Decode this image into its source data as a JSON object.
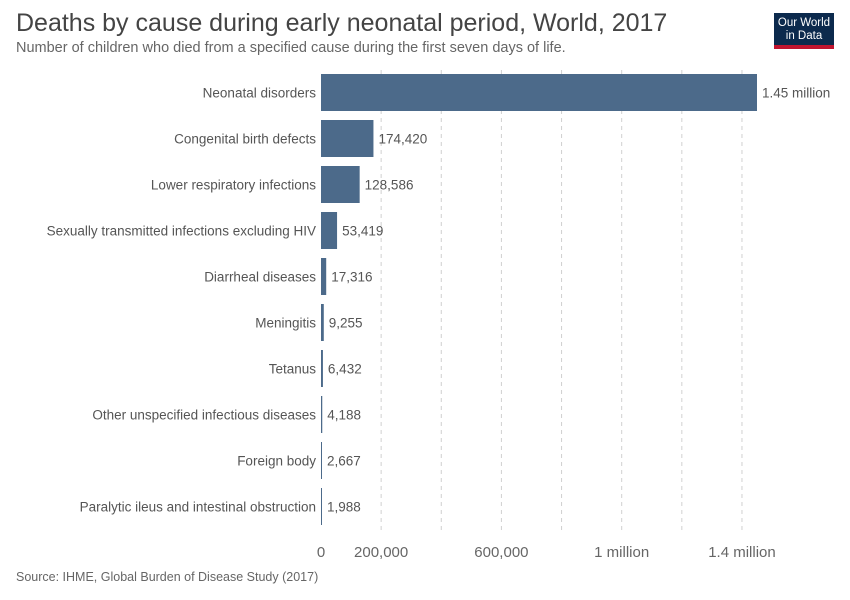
{
  "header": {
    "title": "Deaths by cause during early neonatal period, World, 2017",
    "subtitle": "Number of children who died from a specified cause during the first seven days of life."
  },
  "logo": {
    "line1": "Our World",
    "line2": "in Data"
  },
  "footer": {
    "source": "Source: IHME, Global Burden of Disease Study (2017)"
  },
  "colors": {
    "bar": "#4c6a8a",
    "grid": "#d0d0d0",
    "logo_bg": "#0c2a4d",
    "logo_accent": "#c0142f"
  },
  "chart_data": {
    "type": "bar",
    "orientation": "horizontal",
    "title": "Deaths by cause during early neonatal period, World, 2017",
    "categories": [
      "Neonatal disorders",
      "Congenital birth defects",
      "Lower respiratory infections",
      "Sexually transmitted infections excluding HIV",
      "Diarrheal diseases",
      "Meningitis",
      "Tetanus",
      "Other unspecified infectious diseases",
      "Foreign body",
      "Paralytic ileus and intestinal obstruction"
    ],
    "values": [
      1450000,
      174420,
      128586,
      53419,
      17316,
      9255,
      6432,
      4188,
      2667,
      1988
    ],
    "value_labels": [
      "1.45 million",
      "174,420",
      "128,586",
      "53,419",
      "17,316",
      "9,255",
      "6,432",
      "4,188",
      "2,667",
      "1,988"
    ],
    "x_ticks": [
      {
        "value": 0,
        "label": "0"
      },
      {
        "value": 200000,
        "label": "200,000"
      },
      {
        "value": 600000,
        "label": "600,000"
      },
      {
        "value": 1000000,
        "label": "1 million"
      },
      {
        "value": 1400000,
        "label": "1.4 million"
      }
    ],
    "gridlines": [
      400000,
      800000,
      1200000
    ],
    "xlim": [
      0,
      1450000
    ],
    "grid": true
  }
}
